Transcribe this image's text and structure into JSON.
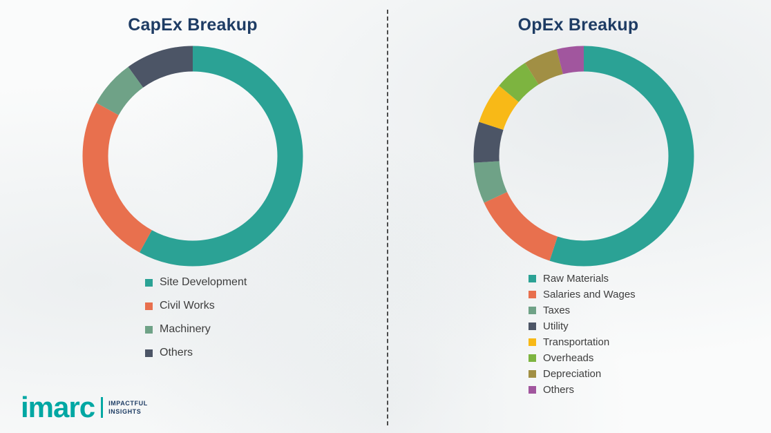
{
  "chart_data": [
    {
      "type": "pie",
      "title": "CapEx Breakup",
      "donut": true,
      "hole": 0.78,
      "start_angle": "top",
      "direction": "clockwise",
      "legend_position": "bottom-left",
      "labels": [
        "Site Development",
        "Civil Works",
        "Machinery",
        "Others"
      ],
      "values": [
        58,
        25,
        7,
        10
      ],
      "colors": [
        "#2ba295",
        "#e8704e",
        "#6fa287",
        "#4c5566"
      ]
    },
    {
      "type": "pie",
      "title": "OpEx Breakup",
      "donut": true,
      "hole": 0.78,
      "start_angle": "top",
      "direction": "clockwise",
      "legend_position": "bottom-left",
      "labels": [
        "Raw Materials",
        "Salaries and Wages",
        "Taxes",
        "Utility",
        "Transportation",
        "Overheads",
        "Depreciation",
        "Others"
      ],
      "values": [
        55,
        13,
        6,
        6,
        6,
        5,
        5,
        4
      ],
      "colors": [
        "#2ba295",
        "#e8704e",
        "#6fa287",
        "#4c5566",
        "#f8b917",
        "#7db440",
        "#a18f44",
        "#a1569e"
      ]
    }
  ],
  "logo": {
    "brand": "imarc",
    "tagline_line1": "IMPACTFUL",
    "tagline_line2": "INSIGHTS",
    "brand_color": "#00a7a3"
  },
  "styles": {
    "title_color": "#1e3c64",
    "legend_text_color": "#3d3d3d",
    "divider_color": "#4b4b4b"
  }
}
